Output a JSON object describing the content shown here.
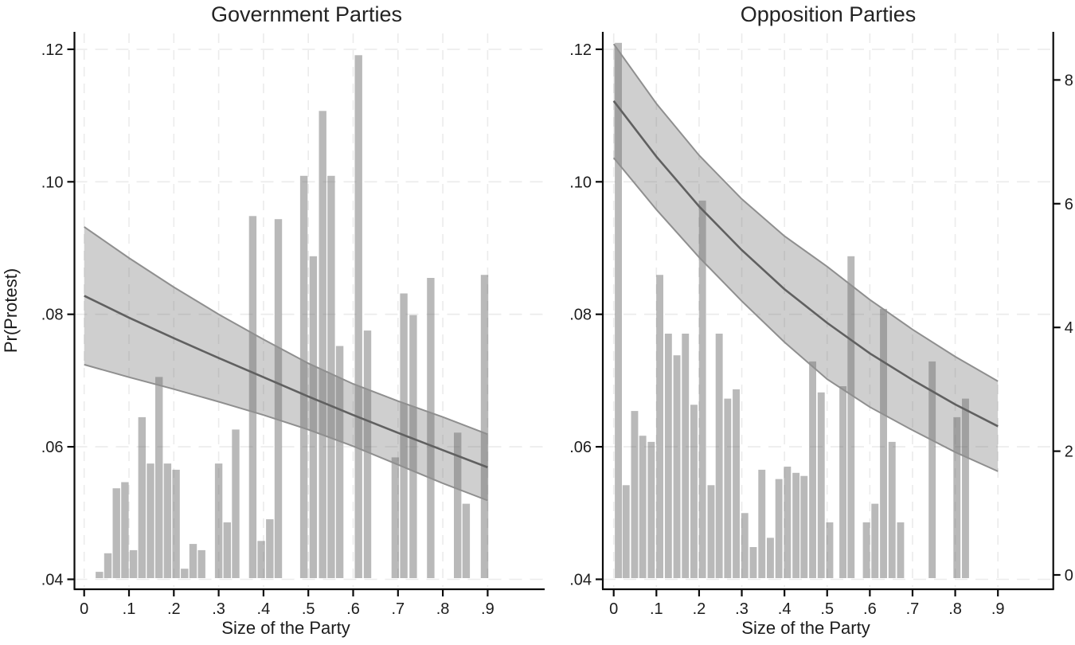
{
  "figure": {
    "left_title": "Government Parties",
    "right_title": "Opposition Parties",
    "ylabel": "Pr(Protest)",
    "xlabel_left": "Size of the Party",
    "xlabel_right": "Size of the Party"
  },
  "style": {
    "background": "#ffffff",
    "text_color": "#1c1c1c",
    "title_color": "#232323",
    "bar_fill": "rgba(100,100,100,0.45)",
    "band_fill": "rgba(110,110,110,0.33)",
    "band_edge": "#8f8f8f",
    "fit_line": "#606060",
    "gridline": "#ebebeb",
    "spine": "#0a0a0a"
  },
  "chart_data": [
    {
      "type": "area",
      "subtype": "fit-line with confidence band plus histogram overlay",
      "title": "Government Parties",
      "xlabel": "Size of the Party",
      "ylabel": "Pr(Protest)",
      "xlim": [
        0,
        0.9
      ],
      "ylim": [
        0.04,
        0.12
      ],
      "grid": true,
      "legend": "none",
      "xticks": [
        "0",
        ".1",
        ".2",
        ".3",
        ".4",
        ".5",
        ".6",
        ".7",
        ".8",
        ".9"
      ],
      "yticks": [
        ".04",
        ".06",
        ".08",
        ".10",
        ".12"
      ],
      "x": [
        0,
        0.1,
        0.2,
        0.3,
        0.4,
        0.5,
        0.6,
        0.7,
        0.8,
        0.9
      ],
      "series": [
        {
          "name": "fit",
          "values": [
            0.0828,
            0.0795,
            0.0764,
            0.0734,
            0.0705,
            0.0676,
            0.0648,
            0.0621,
            0.0595,
            0.0569
          ]
        },
        {
          "name": "ci_upper",
          "values": [
            0.0932,
            0.0885,
            0.0841,
            0.08,
            0.0762,
            0.0726,
            0.0695,
            0.0669,
            0.0645,
            0.0619
          ]
        },
        {
          "name": "ci_lower",
          "values": [
            0.0724,
            0.0705,
            0.0687,
            0.0668,
            0.0648,
            0.0626,
            0.0601,
            0.0573,
            0.0545,
            0.0519
          ]
        }
      ],
      "histogram": {
        "units": "percent of observations (hidden right scale, 0-8)",
        "bin_width": 0.0185,
        "bin_centers": [
          0.034,
          0.053,
          0.072,
          0.091,
          0.11,
          0.129,
          0.148,
          0.167,
          0.186,
          0.205,
          0.224,
          0.243,
          0.262,
          0.3,
          0.319,
          0.338,
          0.376,
          0.395,
          0.414,
          0.433,
          0.49,
          0.511,
          0.532,
          0.551,
          0.57,
          0.612,
          0.632,
          0.694,
          0.713,
          0.734,
          0.773,
          0.833,
          0.852,
          0.893
        ],
        "heights_pct": [
          0.05,
          0.35,
          1.4,
          1.5,
          0.4,
          2.55,
          1.8,
          3.2,
          1.8,
          1.7,
          0.1,
          0.5,
          0.4,
          1.8,
          0.85,
          2.35,
          5.8,
          0.55,
          0.9,
          5.75,
          6.45,
          5.15,
          7.5,
          6.45,
          3.7,
          8.4,
          3.95,
          1.9,
          4.55,
          4.2,
          4.8,
          2.3,
          1.15,
          4.85
        ]
      }
    },
    {
      "type": "area",
      "subtype": "fit-line with confidence band plus histogram overlay",
      "title": "Opposition Parties",
      "xlabel": "Size of the Party",
      "ylabel": "Pr(Protest)",
      "xlim": [
        0,
        0.9
      ],
      "ylim": [
        0.04,
        0.12
      ],
      "grid": true,
      "legend": "none",
      "xticks": [
        "0",
        ".1",
        ".2",
        ".3",
        ".4",
        ".5",
        ".6",
        ".7",
        ".8",
        ".9"
      ],
      "yticks": [
        ".04",
        ".06",
        ".08",
        ".10",
        ".12"
      ],
      "right_axis_ticks": [
        "0",
        "2",
        "4",
        "6",
        "8"
      ],
      "x": [
        0,
        0.1,
        0.2,
        0.3,
        0.4,
        0.5,
        0.6,
        0.7,
        0.8,
        0.9
      ],
      "series": [
        {
          "name": "fit",
          "values": [
            0.1122,
            0.1038,
            0.0963,
            0.0897,
            0.0838,
            0.0787,
            0.0741,
            0.0701,
            0.0664,
            0.0631
          ]
        },
        {
          "name": "ci_upper",
          "values": [
            0.1208,
            0.1118,
            0.104,
            0.0974,
            0.0918,
            0.0872,
            0.0822,
            0.0777,
            0.0736,
            0.0699
          ]
        },
        {
          "name": "ci_lower",
          "values": [
            0.1036,
            0.0958,
            0.0886,
            0.082,
            0.0758,
            0.0702,
            0.066,
            0.0625,
            0.0592,
            0.0563
          ]
        }
      ],
      "histogram": {
        "units": "percent of observations (right axis, 0-8)",
        "bin_width": 0.0185,
        "bin_centers": [
          0.011,
          0.029,
          0.049,
          0.068,
          0.088,
          0.108,
          0.128,
          0.148,
          0.168,
          0.188,
          0.208,
          0.228,
          0.247,
          0.267,
          0.287,
          0.307,
          0.327,
          0.347,
          0.367,
          0.387,
          0.407,
          0.427,
          0.446,
          0.466,
          0.486,
          0.506,
          0.537,
          0.556,
          0.592,
          0.612,
          0.632,
          0.652,
          0.672,
          0.746,
          0.804,
          0.824
        ],
        "heights_pct": [
          8.6,
          1.45,
          2.65,
          2.25,
          2.15,
          4.85,
          3.9,
          3.55,
          3.9,
          2.75,
          6.05,
          1.45,
          3.9,
          2.85,
          3.0,
          1.0,
          0.45,
          1.7,
          0.6,
          1.55,
          1.75,
          1.65,
          1.6,
          3.45,
          2.95,
          0.85,
          3.05,
          5.15,
          0.85,
          1.15,
          4.3,
          2.15,
          0.85,
          3.45,
          2.55,
          2.85
        ]
      }
    }
  ]
}
